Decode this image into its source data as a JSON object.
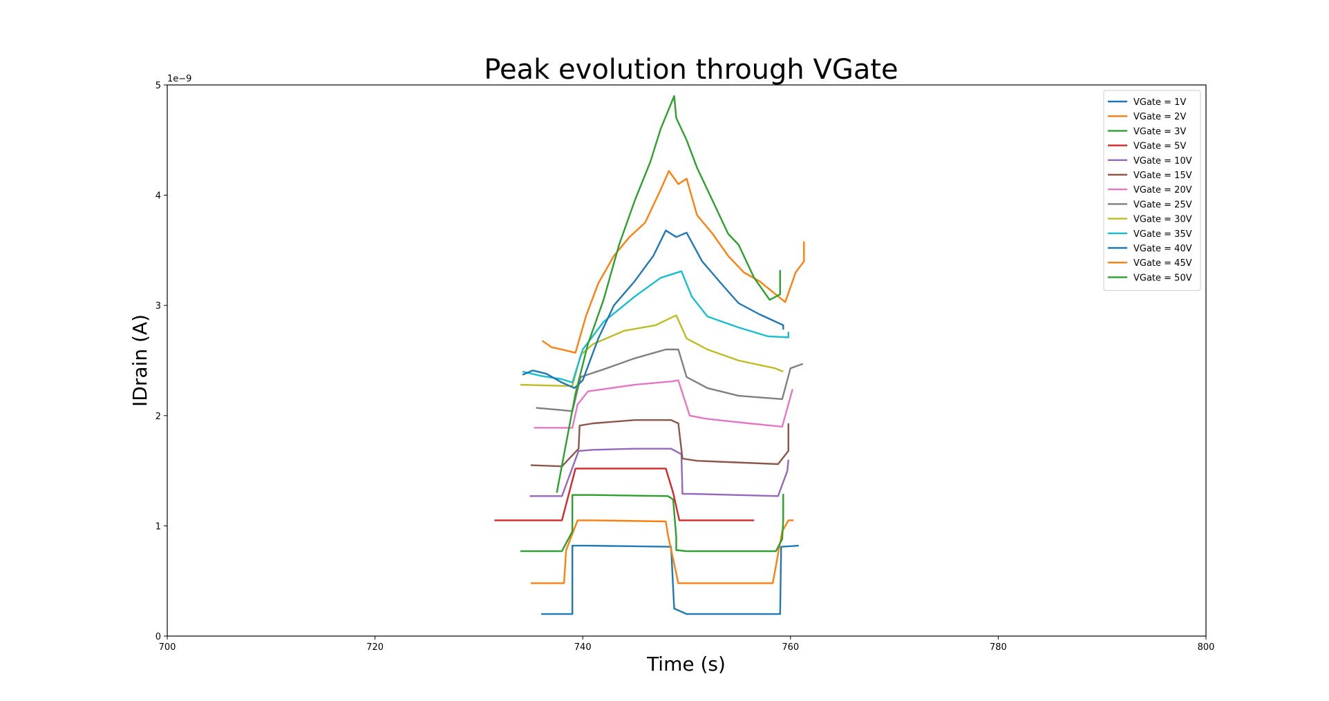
{
  "chart_data": {
    "type": "line",
    "title": "Peak evolution through VGate",
    "xlabel": "Time (s)",
    "ylabel": "IDrain (A)",
    "y_multiplier": "1e−9",
    "xlim": [
      700,
      800
    ],
    "ylim": [
      0,
      5
    ],
    "x_ticks": [
      "700",
      "720",
      "740",
      "760",
      "780",
      "800"
    ],
    "y_ticks": [
      "0",
      "1",
      "2",
      "3",
      "4",
      "5"
    ],
    "grid": false,
    "legend_position": "top-right",
    "series": [
      {
        "name": "VGate = 1V",
        "color": "#1f77b4",
        "x": [
          736.0,
          739.0,
          739.0,
          740.5,
          748.5,
          748.8,
          750.0,
          759.0,
          759.1,
          760.8
        ],
        "y": [
          0.2,
          0.2,
          0.82,
          0.82,
          0.81,
          0.25,
          0.2,
          0.2,
          0.81,
          0.82
        ]
      },
      {
        "name": "VGate = 2V",
        "color": "#ff7f0e",
        "x": [
          735.0,
          738.2,
          738.4,
          739.5,
          741.0,
          748.0,
          748.2,
          749.2,
          758.3,
          759.2,
          759.8,
          760.3
        ],
        "y": [
          0.48,
          0.48,
          0.78,
          1.05,
          1.05,
          1.04,
          0.92,
          0.48,
          0.48,
          0.95,
          1.05,
          1.05
        ]
      },
      {
        "name": "VGate = 3V",
        "color": "#2ca02c",
        "x": [
          734.0,
          738.0,
          739.0,
          739.0,
          741.0,
          748.2,
          748.7,
          749.0,
          749.0,
          750.0,
          758.6,
          759.2,
          759.3,
          759.3
        ],
        "y": [
          0.77,
          0.77,
          0.95,
          1.28,
          1.28,
          1.27,
          1.24,
          0.9,
          0.78,
          0.77,
          0.77,
          0.88,
          1.05,
          1.29
        ]
      },
      {
        "name": "VGate = 5V",
        "color": "#d62728",
        "x": [
          731.5,
          738.0,
          739.3,
          741.0,
          748.0,
          748.7,
          749.3,
          750.0,
          756.5
        ],
        "y": [
          1.05,
          1.05,
          1.52,
          1.52,
          1.52,
          1.3,
          1.05,
          1.05,
          1.05
        ]
      },
      {
        "name": "VGate = 10V",
        "color": "#9467bd",
        "x": [
          734.9,
          738.0,
          739.6,
          741.0,
          745.0,
          748.5,
          749.5,
          749.6,
          750.5,
          758.8,
          759.7,
          759.8
        ],
        "y": [
          1.27,
          1.27,
          1.68,
          1.69,
          1.7,
          1.7,
          1.65,
          1.29,
          1.29,
          1.27,
          1.5,
          1.6
        ]
      },
      {
        "name": "VGate = 15V",
        "color": "#8c564b",
        "x": [
          735.0,
          738.0,
          739.6,
          739.7,
          741.0,
          745.0,
          748.5,
          749.2,
          749.6,
          751.0,
          758.8,
          759.8,
          759.8
        ],
        "y": [
          1.55,
          1.54,
          1.7,
          1.91,
          1.93,
          1.96,
          1.96,
          1.93,
          1.61,
          1.59,
          1.56,
          1.68,
          1.93
        ]
      },
      {
        "name": "VGate = 20V",
        "color": "#e377c2",
        "x": [
          735.3,
          738.0,
          739.0,
          739.5,
          740.5,
          745.0,
          748.5,
          749.2,
          750.3,
          752.0,
          756.0,
          759.2,
          760.2
        ],
        "y": [
          1.89,
          1.89,
          1.89,
          2.1,
          2.22,
          2.28,
          2.31,
          2.32,
          2.0,
          1.97,
          1.93,
          1.9,
          2.24
        ]
      },
      {
        "name": "VGate = 25V",
        "color": "#7f7f7f",
        "x": [
          735.5,
          738.0,
          739.0,
          739.8,
          742.0,
          745.0,
          748.0,
          749.2,
          750.0,
          752.0,
          755.0,
          759.2,
          760.0,
          761.2
        ],
        "y": [
          2.07,
          2.05,
          2.04,
          2.35,
          2.42,
          2.52,
          2.6,
          2.6,
          2.35,
          2.25,
          2.18,
          2.15,
          2.43,
          2.47
        ]
      },
      {
        "name": "VGate = 30V",
        "color": "#bcbd22",
        "x": [
          734.0,
          738.0,
          739.0,
          739.8,
          741.0,
          744.0,
          747.0,
          749.0,
          750.0,
          752.0,
          755.0,
          758.5,
          759.3
        ],
        "y": [
          2.28,
          2.27,
          2.27,
          2.55,
          2.65,
          2.77,
          2.82,
          2.91,
          2.7,
          2.6,
          2.5,
          2.43,
          2.4
        ]
      },
      {
        "name": "VGate = 35V",
        "color": "#17becf",
        "x": [
          734.2,
          736.0,
          738.0,
          739.0,
          740.0,
          742.0,
          745.0,
          747.5,
          749.5,
          750.5,
          752.0,
          755.0,
          757.8,
          759.8,
          759.8
        ],
        "y": [
          2.4,
          2.36,
          2.33,
          2.3,
          2.6,
          2.85,
          3.08,
          3.25,
          3.31,
          3.08,
          2.9,
          2.8,
          2.72,
          2.71,
          2.76
        ]
      },
      {
        "name": "VGate = 40V",
        "color": "#1f77b4",
        "x": [
          734.2,
          735.2,
          736.5,
          738.0,
          739.2,
          740.0,
          741.5,
          743.0,
          745.0,
          746.8,
          748.0,
          749.0,
          750.0,
          751.5,
          753.5,
          755.0,
          757.0,
          759.3,
          759.3
        ],
        "y": [
          2.37,
          2.41,
          2.38,
          2.3,
          2.25,
          2.32,
          2.7,
          3.0,
          3.22,
          3.45,
          3.68,
          3.62,
          3.66,
          3.4,
          3.18,
          3.02,
          2.92,
          2.82,
          2.78
        ]
      },
      {
        "name": "VGate = 45V",
        "color": "#ff7f0e",
        "x": [
          736.1,
          737.0,
          738.0,
          739.3,
          740.3,
          741.5,
          743.0,
          744.5,
          746.0,
          747.5,
          748.3,
          749.2,
          750.0,
          751.0,
          752.5,
          754.0,
          755.5,
          757.0,
          759.5,
          760.5,
          761.3,
          761.3
        ],
        "y": [
          2.68,
          2.62,
          2.6,
          2.57,
          2.9,
          3.2,
          3.45,
          3.62,
          3.75,
          4.05,
          4.22,
          4.1,
          4.15,
          3.82,
          3.65,
          3.45,
          3.3,
          3.22,
          3.03,
          3.3,
          3.4,
          3.58
        ]
      },
      {
        "name": "VGate = 50V",
        "color": "#2ca02c",
        "x": [
          737.5,
          738.5,
          739.3,
          740.5,
          742.0,
          743.5,
          745.0,
          746.5,
          747.5,
          748.8,
          749.0,
          750.0,
          751.0,
          752.5,
          754.0,
          755.0,
          756.5,
          758.0,
          759.0,
          759.0
        ],
        "y": [
          1.3,
          1.8,
          2.2,
          2.65,
          3.05,
          3.55,
          3.95,
          4.3,
          4.6,
          4.9,
          4.7,
          4.5,
          4.25,
          3.95,
          3.65,
          3.55,
          3.25,
          3.05,
          3.1,
          3.32
        ]
      }
    ]
  }
}
